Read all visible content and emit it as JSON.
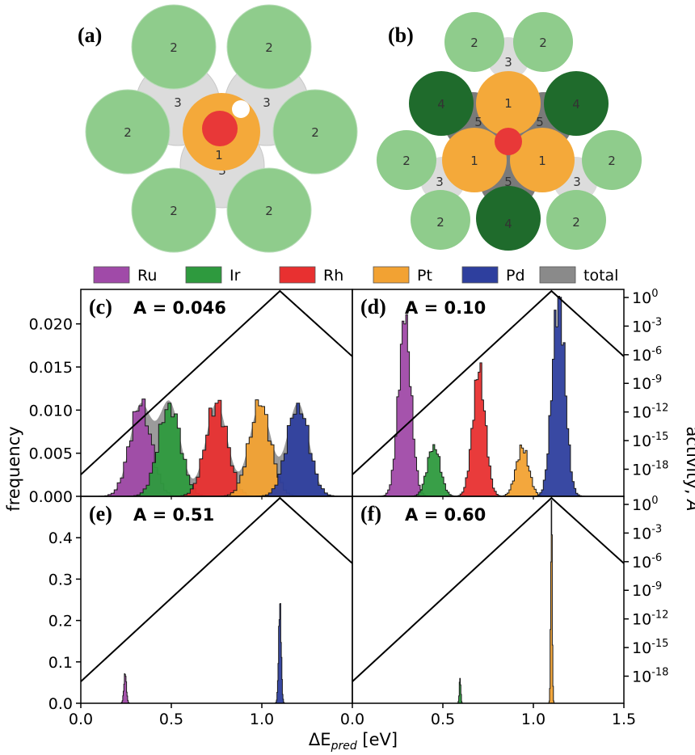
{
  "panels": {
    "a": {
      "label": "(a)"
    },
    "b": {
      "label": "(b)"
    }
  },
  "structure_a": {
    "outer_labels": [
      "2",
      "2",
      "2",
      "2",
      "2",
      "2"
    ],
    "bridge_labels": [
      "3",
      "3",
      "3"
    ],
    "center_label": "1",
    "colors": {
      "outer": "#8fcc8c",
      "bridge": "#dcdcdc",
      "center": "#f4a93a",
      "adsorbate": "#e83838",
      "h": "#ffffff"
    }
  },
  "structure_b": {
    "top_pair_labels": [
      "2",
      "2"
    ],
    "top_bridge_label": "3",
    "dark_labels": [
      "4",
      "4",
      "4"
    ],
    "hollow_labels": [
      "5",
      "5",
      "5"
    ],
    "center_labels": [
      "1",
      "1",
      "1"
    ],
    "side_labels": [
      "2",
      "2",
      "2",
      "2"
    ],
    "side_bridge_labels": [
      "3",
      "3"
    ],
    "colors": {
      "light": "#8fcc8c",
      "dark": "#1f6b2c",
      "bridge": "#dcdcdc",
      "hollow": "#7a7a7a",
      "center": "#f4a93a",
      "adsorbate": "#e83838"
    }
  },
  "legend": [
    {
      "name": "Ru",
      "color": "#a04aa8"
    },
    {
      "name": "Ir",
      "color": "#2e9a3e"
    },
    {
      "name": "Rh",
      "color": "#e83030"
    },
    {
      "name": "Pt",
      "color": "#f2a233"
    },
    {
      "name": "Pd",
      "color": "#2e3f9e"
    },
    {
      "name": "total",
      "color": "#8a8a8a"
    }
  ],
  "axes": {
    "xlabel": "ΔE",
    "xlabel_sub": "pred",
    "xlabel_unit": " [eV]",
    "ylabel": "frequency",
    "ylabel_right": "activity, ",
    "ylabel_right_var": "A",
    "x_ticks": [
      "0.0",
      "0.5",
      "1.0",
      "1.5"
    ],
    "right_ticks_exp": [
      "0",
      "-3",
      "-6",
      "-9",
      "-12",
      "-15",
      "-18"
    ],
    "right_tick_base": "10"
  },
  "chart_data": [
    {
      "panel": "(c)",
      "title": "A = 0.046",
      "type": "bar",
      "xlim": [
        0,
        1.5
      ],
      "ylim": [
        0,
        0.024
      ],
      "yticks": [
        "0.000",
        "0.005",
        "0.010",
        "0.015",
        "0.020"
      ],
      "series": [
        {
          "name": "Ru",
          "peak_x": 0.33,
          "width": 0.06,
          "peak_y": 0.0105
        },
        {
          "name": "Ir",
          "peak_x": 0.49,
          "width": 0.06,
          "peak_y": 0.0108
        },
        {
          "name": "Rh",
          "peak_x": 0.75,
          "width": 0.06,
          "peak_y": 0.0108
        },
        {
          "name": "Pt",
          "peak_x": 0.99,
          "width": 0.06,
          "peak_y": 0.0105
        },
        {
          "name": "Pd",
          "peak_x": 1.2,
          "width": 0.06,
          "peak_y": 0.0108
        }
      ],
      "activity_peak_x": 1.1
    },
    {
      "panel": "(d)",
      "title": "A = 0.10",
      "type": "bar",
      "xlim": [
        0,
        1.5
      ],
      "ylim": [
        0,
        0.3
      ],
      "series": [
        {
          "name": "Ru",
          "peak_x": 0.29,
          "width": 0.035,
          "peak_y": 0.25
        },
        {
          "name": "Ir",
          "peak_x": 0.45,
          "width": 0.035,
          "peak_y": 0.075
        },
        {
          "name": "Rh",
          "peak_x": 0.7,
          "width": 0.035,
          "peak_y": 0.18
        },
        {
          "name": "Pt",
          "peak_x": 0.94,
          "width": 0.035,
          "peak_y": 0.07
        },
        {
          "name": "Pd",
          "peak_x": 1.14,
          "width": 0.035,
          "peak_y": 0.29
        }
      ],
      "activity_peak_x": 1.1
    },
    {
      "panel": "(e)",
      "title": "A = 0.51",
      "type": "bar",
      "xlim": [
        0,
        1.5
      ],
      "ylim": [
        0,
        0.5
      ],
      "yticks": [
        "0.0",
        "0.1",
        "0.2",
        "0.3",
        "0.4"
      ],
      "series": [
        {
          "name": "Ru",
          "peak_x": 0.245,
          "width": 0.007,
          "peak_y": 0.07
        },
        {
          "name": "Pd",
          "peak_x": 1.1,
          "width": 0.007,
          "peak_y": 0.24
        }
      ],
      "activity_peak_x": 1.1
    },
    {
      "panel": "(f)",
      "title": "A = 0.60",
      "type": "bar",
      "xlim": [
        0,
        1.5
      ],
      "ylim": [
        0,
        0.5
      ],
      "series": [
        {
          "name": "Ir",
          "peak_x": 0.595,
          "width": 0.004,
          "peak_y": 0.06
        },
        {
          "name": "Pt",
          "peak_x": 1.1,
          "width": 0.004,
          "peak_y": 0.49
        }
      ],
      "activity_peak_x": 1.1
    }
  ]
}
